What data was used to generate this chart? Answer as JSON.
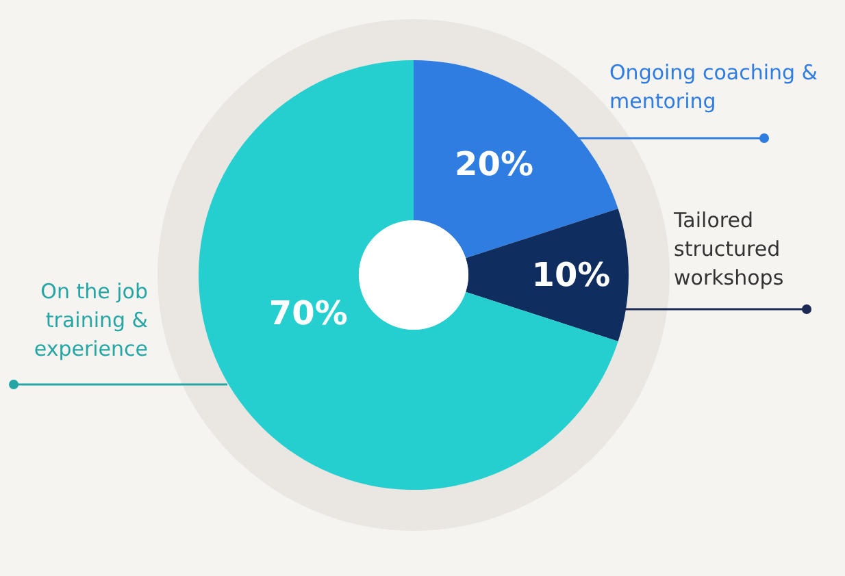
{
  "chart_data": {
    "type": "donut",
    "categories": [
      "Ongoing coaching & mentoring",
      "Tailored structured workshops",
      "On the job training & experience"
    ],
    "values": [
      20,
      10,
      70
    ],
    "colors": [
      "#2f7de1",
      "#0f2d5e",
      "#26cfcf"
    ],
    "value_labels": [
      "20%",
      "10%",
      "70%"
    ]
  }
}
